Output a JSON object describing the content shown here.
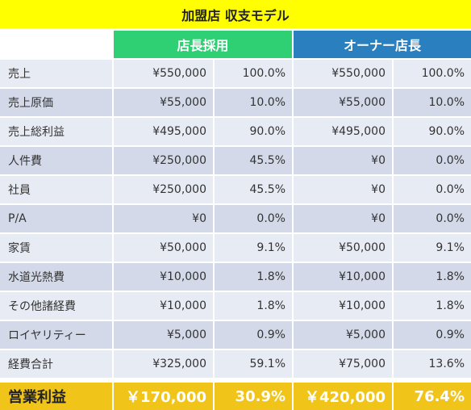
{
  "title": "加盟店 収支モデル",
  "headers": {
    "franchise_manager": "店長採用",
    "owner_manager": "オーナー店長"
  },
  "rows": [
    {
      "label": "売上",
      "a_amount": "¥550,000",
      "a_pct": "100.0%",
      "b_amount": "¥550,000",
      "b_pct": "100.0%"
    },
    {
      "label": "売上原価",
      "a_amount": "¥55,000",
      "a_pct": "10.0%",
      "b_amount": "¥55,000",
      "b_pct": "10.0%"
    },
    {
      "label": "売上総利益",
      "a_amount": "¥495,000",
      "a_pct": "90.0%",
      "b_amount": "¥495,000",
      "b_pct": "90.0%"
    },
    {
      "label": "人件費",
      "a_amount": "¥250,000",
      "a_pct": "45.5%",
      "b_amount": "¥0",
      "b_pct": "0.0%"
    },
    {
      "label": "社員",
      "a_amount": "¥250,000",
      "a_pct": "45.5%",
      "b_amount": "¥0",
      "b_pct": "0.0%"
    },
    {
      "label": "P/A",
      "a_amount": "¥0",
      "a_pct": "0.0%",
      "b_amount": "¥0",
      "b_pct": "0.0%"
    },
    {
      "label": "家賃",
      "a_amount": "¥50,000",
      "a_pct": "9.1%",
      "b_amount": "¥50,000",
      "b_pct": "9.1%"
    },
    {
      "label": "水道光熱費",
      "a_amount": "¥10,000",
      "a_pct": "1.8%",
      "b_amount": "¥10,000",
      "b_pct": "1.8%"
    },
    {
      "label": "その他諸経費",
      "a_amount": "¥10,000",
      "a_pct": "1.8%",
      "b_amount": "¥10,000",
      "b_pct": "1.8%"
    },
    {
      "label": "ロイヤリティー",
      "a_amount": "¥5,000",
      "a_pct": "0.9%",
      "b_amount": "¥5,000",
      "b_pct": "0.9%"
    },
    {
      "label": "経費合計",
      "a_amount": "¥325,000",
      "a_pct": "59.1%",
      "b_amount": "¥75,000",
      "b_pct": "13.6%"
    }
  ],
  "total": {
    "label": "営業利益",
    "a_amount": "￥170,000",
    "a_pct": "30.9%",
    "b_amount": "￥420,000",
    "b_pct": "76.4%"
  },
  "colors": {
    "title_bg": "#ffff00",
    "franchise_header": "#2fcf73",
    "owner_header": "#2a7fbf",
    "row_light": "#e7ebf4",
    "row_dark": "#d3d9e8",
    "total_bg": "#f0c419"
  }
}
